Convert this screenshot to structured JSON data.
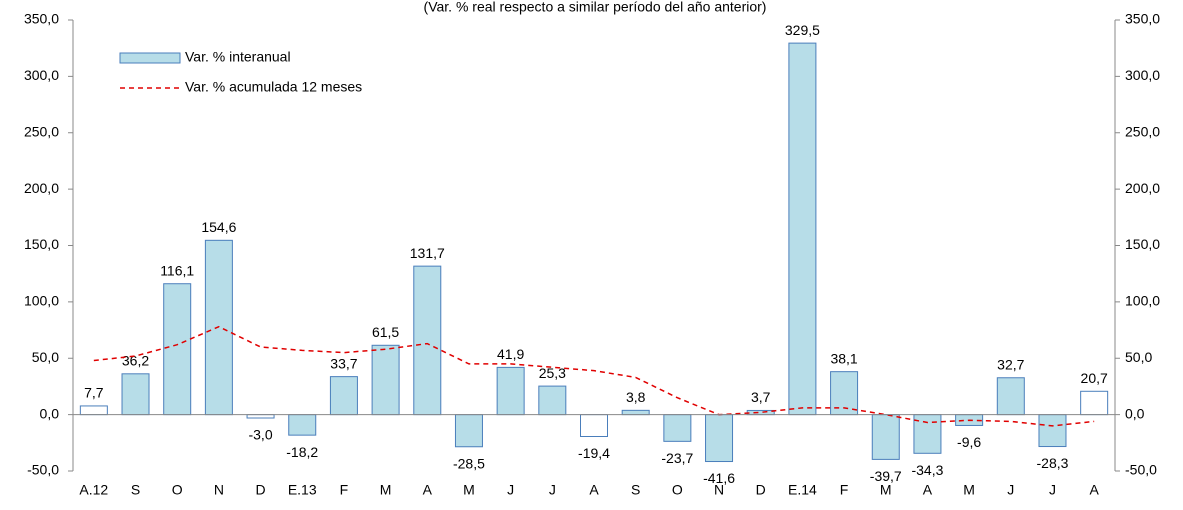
{
  "chart_data": {
    "type": "bar",
    "subtitle": "(Var. % real respecto a similar período del año anterior)",
    "categories": [
      "A.12",
      "S",
      "O",
      "N",
      "D",
      "E.13",
      "F",
      "M",
      "A",
      "M",
      "J",
      "J",
      "A",
      "S",
      "O",
      "N",
      "D",
      "E.14",
      "F",
      "M",
      "A",
      "M",
      "J",
      "J",
      "A"
    ],
    "series": [
      {
        "name": "Var. % interanual",
        "type": "bar",
        "color": "#b7dde8",
        "edge_color": "#4a7ebb",
        "colors": [
          "#ffffff",
          "#b7dde8",
          "#b7dde8",
          "#b7dde8",
          "#ffffff",
          "#b7dde8",
          "#b7dde8",
          "#b7dde8",
          "#b7dde8",
          "#b7dde8",
          "#b7dde8",
          "#b7dde8",
          "#ffffff",
          "#b7dde8",
          "#b7dde8",
          "#b7dde8",
          "#b7dde8",
          "#b7dde8",
          "#b7dde8",
          "#b7dde8",
          "#b7dde8",
          "#b7dde8",
          "#b7dde8",
          "#b7dde8",
          "#ffffff"
        ],
        "values": [
          7.7,
          36.2,
          116.1,
          154.6,
          -3.0,
          -18.2,
          33.7,
          61.5,
          131.7,
          -28.5,
          41.9,
          25.3,
          -19.4,
          3.8,
          -23.7,
          -41.6,
          3.7,
          329.5,
          38.1,
          -39.7,
          -34.3,
          -9.6,
          32.7,
          -28.3,
          20.7
        ],
        "value_labels": [
          "7,7",
          "36,2",
          "116,1",
          "154,6",
          "-3,0",
          "-18,2",
          "33,7",
          "61,5",
          "131,7",
          "-28,5",
          "41,9",
          "25,3",
          "-19,4",
          "3,8",
          "-23,7",
          "-41,6",
          "3,7",
          "329,5",
          "38,1",
          "-39,7",
          "-34,3",
          "-9,6",
          "32,7",
          "-28,3",
          "20,7"
        ]
      },
      {
        "name": "Var. % acumulada 12 meses",
        "type": "line",
        "color": "#e00000",
        "linestyle": "dashed",
        "values": [
          48,
          52,
          62,
          78,
          60,
          57,
          55,
          58,
          63,
          45,
          45,
          42,
          39,
          33,
          15,
          0,
          2,
          6,
          6,
          0,
          -7,
          -5,
          -6,
          -10,
          -6
        ]
      }
    ],
    "ylim": [
      -50,
      350
    ],
    "yticks": [
      {
        "value": -50,
        "label": "-50,0"
      },
      {
        "value": 0,
        "label": "0,0"
      },
      {
        "value": 50,
        "label": "50,0"
      },
      {
        "value": 100,
        "label": "100,0"
      },
      {
        "value": 150,
        "label": "150,0"
      },
      {
        "value": 200,
        "label": "200,0"
      },
      {
        "value": 250,
        "label": "250,0"
      },
      {
        "value": 300,
        "label": "300,0"
      },
      {
        "value": 350,
        "label": "350,0"
      }
    ],
    "y2lim": [
      -50,
      350
    ],
    "y2ticks": [
      {
        "value": -50,
        "label": "-50,0"
      },
      {
        "value": 0,
        "label": "0,0"
      },
      {
        "value": 50,
        "label": "50,0"
      },
      {
        "value": 100,
        "label": "100,0"
      },
      {
        "value": 150,
        "label": "150,0"
      },
      {
        "value": 200,
        "label": "200,0"
      },
      {
        "value": 250,
        "label": "250,0"
      },
      {
        "value": 300,
        "label": "300,0"
      },
      {
        "value": 350,
        "label": "350,0"
      }
    ],
    "legend": "upper left"
  }
}
